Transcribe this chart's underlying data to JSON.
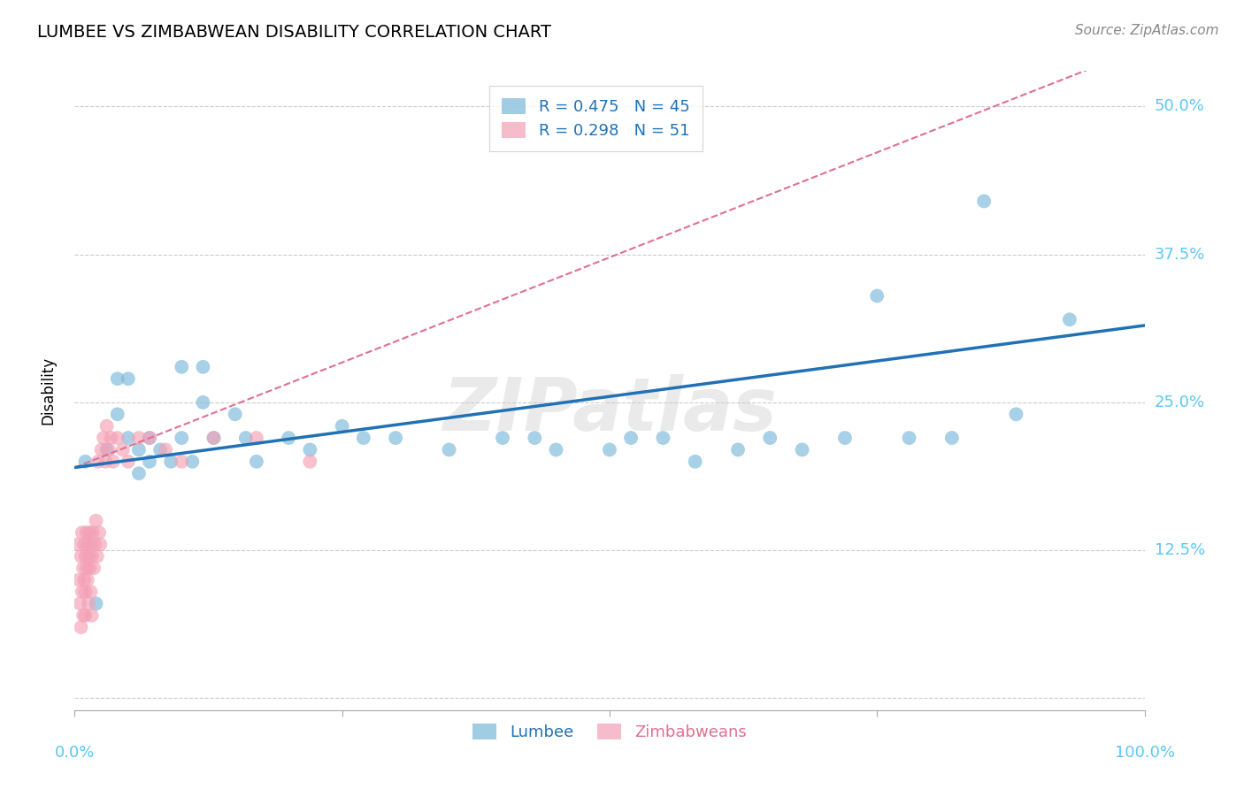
{
  "title": "LUMBEE VS ZIMBABWEAN DISABILITY CORRELATION CHART",
  "source": "Source: ZipAtlas.com",
  "ylabel": "Disability",
  "lumbee_R": 0.475,
  "lumbee_N": 45,
  "zimbabwean_R": 0.298,
  "zimbabwean_N": 51,
  "lumbee_color": "#7ab8d9",
  "zimbabwean_color": "#f4a0b5",
  "lumbee_line_color": "#2171b5",
  "zimbabwean_line_color": "#e07090",
  "ytick_vals": [
    0.0,
    0.125,
    0.25,
    0.375,
    0.5
  ],
  "ytick_labels": [
    "",
    "12.5%",
    "25.0%",
    "37.5%",
    "50.0%"
  ],
  "lumbee_x": [
    0.01,
    0.02,
    0.03,
    0.04,
    0.04,
    0.05,
    0.05,
    0.06,
    0.06,
    0.07,
    0.07,
    0.08,
    0.09,
    0.1,
    0.1,
    0.11,
    0.12,
    0.12,
    0.13,
    0.15,
    0.16,
    0.17,
    0.2,
    0.22,
    0.25,
    0.27,
    0.3,
    0.35,
    0.4,
    0.43,
    0.45,
    0.5,
    0.52,
    0.55,
    0.58,
    0.62,
    0.65,
    0.68,
    0.72,
    0.75,
    0.78,
    0.82,
    0.85,
    0.88,
    0.93
  ],
  "lumbee_y": [
    0.2,
    0.08,
    0.21,
    0.27,
    0.24,
    0.22,
    0.27,
    0.21,
    0.19,
    0.22,
    0.2,
    0.21,
    0.2,
    0.28,
    0.22,
    0.2,
    0.28,
    0.25,
    0.22,
    0.24,
    0.22,
    0.2,
    0.22,
    0.21,
    0.23,
    0.22,
    0.22,
    0.21,
    0.22,
    0.22,
    0.21,
    0.21,
    0.22,
    0.22,
    0.2,
    0.21,
    0.22,
    0.21,
    0.22,
    0.34,
    0.22,
    0.22,
    0.42,
    0.24,
    0.32
  ],
  "zimbabwean_x": [
    0.003,
    0.004,
    0.005,
    0.006,
    0.006,
    0.007,
    0.007,
    0.008,
    0.008,
    0.009,
    0.009,
    0.01,
    0.01,
    0.01,
    0.011,
    0.011,
    0.012,
    0.012,
    0.013,
    0.013,
    0.014,
    0.014,
    0.015,
    0.015,
    0.016,
    0.016,
    0.017,
    0.018,
    0.019,
    0.02,
    0.021,
    0.022,
    0.023,
    0.024,
    0.025,
    0.027,
    0.029,
    0.03,
    0.032,
    0.034,
    0.036,
    0.04,
    0.045,
    0.05,
    0.06,
    0.07,
    0.085,
    0.1,
    0.13,
    0.17,
    0.22
  ],
  "zimbabwean_y": [
    0.13,
    0.1,
    0.08,
    0.06,
    0.12,
    0.14,
    0.09,
    0.11,
    0.07,
    0.13,
    0.1,
    0.12,
    0.09,
    0.07,
    0.14,
    0.11,
    0.13,
    0.1,
    0.12,
    0.08,
    0.14,
    0.11,
    0.13,
    0.09,
    0.12,
    0.07,
    0.14,
    0.11,
    0.13,
    0.15,
    0.12,
    0.2,
    0.14,
    0.13,
    0.21,
    0.22,
    0.2,
    0.23,
    0.21,
    0.22,
    0.2,
    0.22,
    0.21,
    0.2,
    0.22,
    0.22,
    0.21,
    0.2,
    0.22,
    0.22,
    0.2
  ]
}
